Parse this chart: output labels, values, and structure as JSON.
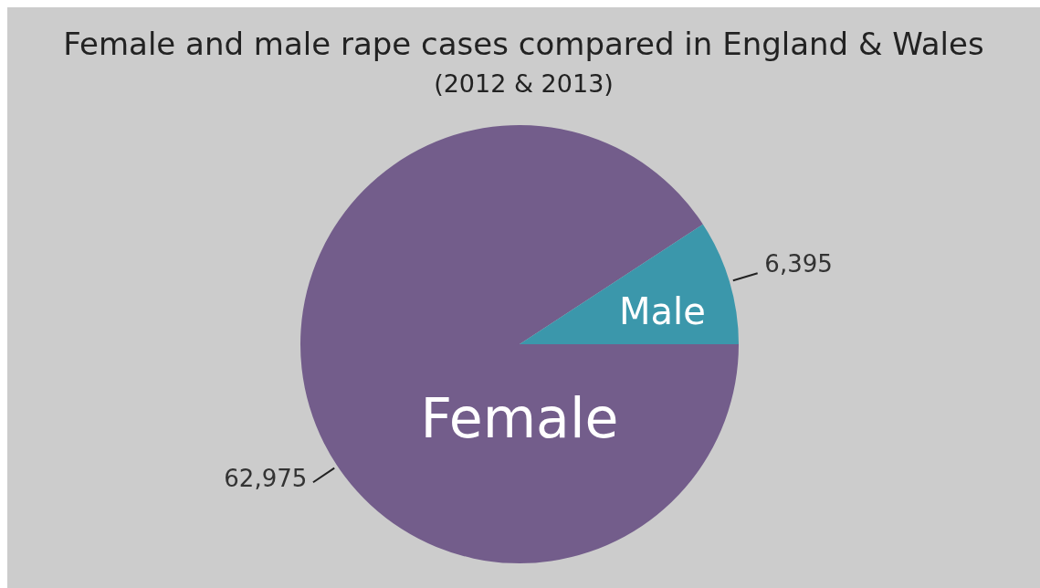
{
  "chart_data": {
    "type": "pie",
    "title": "Female and male rape cases compared in England & Wales",
    "subtitle": "(2012 & 2013)",
    "categories": [
      "Female",
      "Male"
    ],
    "values": [
      62975,
      6395
    ],
    "colors": [
      "#735d8b",
      "#3b97ab"
    ],
    "value_labels": [
      "62,975",
      "6,395"
    ],
    "legend": false
  }
}
